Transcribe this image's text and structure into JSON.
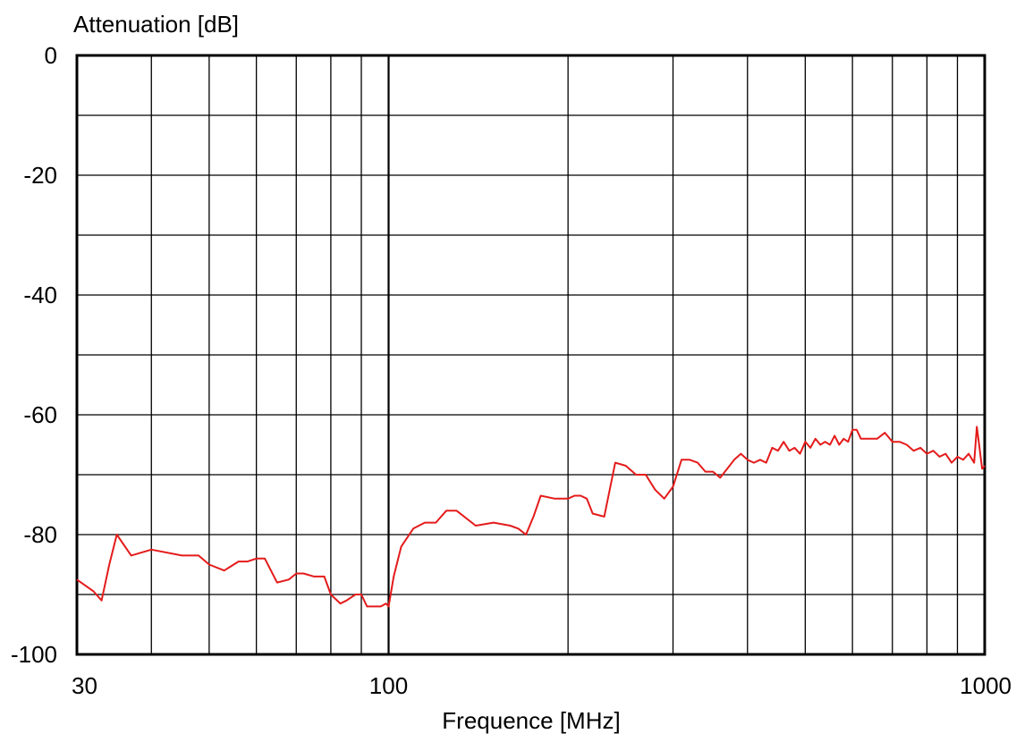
{
  "chart_data": {
    "type": "line",
    "title": "",
    "xlabel": "Frequence [MHz]",
    "ylabel": "Attenuation [dB]",
    "x_scale": "log",
    "xlim": [
      30,
      1000
    ],
    "ylim": [
      -100,
      0
    ],
    "x_tick_labels": [
      "30",
      "100",
      "1000"
    ],
    "y_tick_labels": [
      "0",
      "-20",
      "-40",
      "-60",
      "-80",
      "-100"
    ],
    "grid": true,
    "line_color": "#e41b1b",
    "series": [
      {
        "name": "",
        "x": [
          30,
          32,
          33,
          34,
          35,
          37,
          40,
          45,
          48,
          50,
          53,
          56,
          58,
          60,
          62,
          65,
          68,
          70,
          72,
          75,
          78,
          80,
          83,
          85,
          88,
          90,
          92,
          95,
          97,
          99,
          100,
          102,
          105,
          110,
          115,
          120,
          125,
          130,
          140,
          150,
          160,
          165,
          170,
          175,
          180,
          190,
          200,
          205,
          210,
          215,
          220,
          230,
          240,
          250,
          260,
          270,
          280,
          290,
          300,
          310,
          320,
          330,
          340,
          350,
          360,
          370,
          380,
          390,
          400,
          410,
          420,
          430,
          440,
          450,
          460,
          470,
          480,
          490,
          500,
          510,
          520,
          530,
          540,
          550,
          560,
          570,
          580,
          590,
          600,
          610,
          620,
          640,
          660,
          680,
          700,
          720,
          740,
          760,
          780,
          800,
          820,
          840,
          860,
          880,
          900,
          920,
          940,
          960,
          970,
          980,
          990,
          1000
        ],
        "y": [
          -87.5,
          -89.5,
          -91.0,
          -85.0,
          -80.0,
          -83.5,
          -82.5,
          -83.5,
          -83.5,
          -85.0,
          -86.0,
          -84.5,
          -84.5,
          -84.0,
          -84.0,
          -88.0,
          -87.5,
          -86.5,
          -86.5,
          -87.0,
          -87.0,
          -90.0,
          -91.5,
          -91.0,
          -90.0,
          -90.0,
          -92.0,
          -92.0,
          -92.0,
          -91.5,
          -92.0,
          -87.0,
          -82.0,
          -79.0,
          -78.0,
          -78.0,
          -76.0,
          -76.0,
          -78.5,
          -78.0,
          -78.5,
          -79.0,
          -80.0,
          -77.0,
          -73.5,
          -74.0,
          -74.0,
          -73.5,
          -73.5,
          -74.0,
          -76.5,
          -77.0,
          -68.0,
          -68.5,
          -70.0,
          -70.0,
          -72.5,
          -74.0,
          -72.0,
          -67.5,
          -67.5,
          -68.0,
          -69.5,
          -69.5,
          -70.5,
          -69.0,
          -67.5,
          -66.5,
          -67.5,
          -68.0,
          -67.5,
          -68.0,
          -65.5,
          -66.0,
          -64.5,
          -66.0,
          -65.5,
          -66.5,
          -64.5,
          -65.5,
          -64.0,
          -65.0,
          -64.5,
          -65.0,
          -63.5,
          -65.0,
          -64.0,
          -64.5,
          -62.5,
          -62.5,
          -64.0,
          -64.0,
          -64.0,
          -63.0,
          -64.5,
          -64.5,
          -65.0,
          -66.0,
          -65.5,
          -66.5,
          -66.0,
          -67.0,
          -66.5,
          -68.0,
          -67.0,
          -67.5,
          -66.5,
          -68.0,
          -62.0,
          -65.5,
          -69.0,
          -68.5
        ]
      }
    ]
  }
}
